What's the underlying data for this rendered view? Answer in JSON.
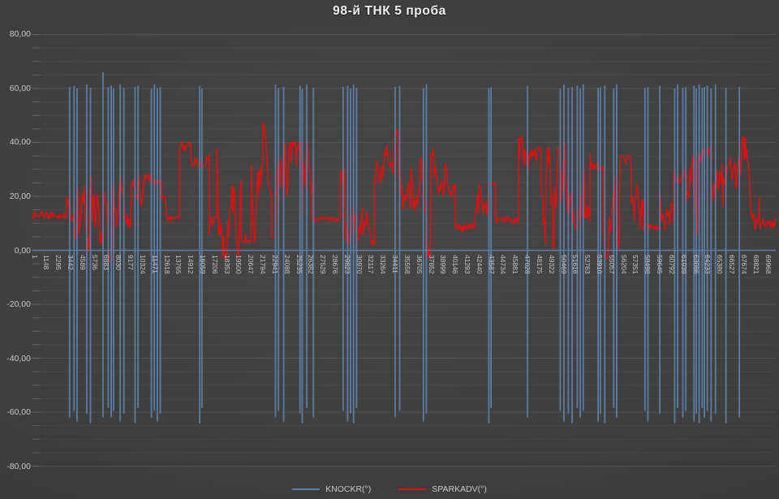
{
  "chart_data": {
    "type": "line",
    "title": "98-й ТНК 5 проба",
    "xlabel": "",
    "ylabel": "",
    "ylim": [
      -80,
      80
    ],
    "ytick_step": 20,
    "minor_grid_step": 5,
    "grid": true,
    "ytick_labels": [
      "80,00",
      "60,00",
      "40,00",
      "20,00",
      "0,00",
      "-20,00",
      "-40,00",
      "-60,00",
      "-80,00"
    ],
    "ytick_values": [
      80,
      60,
      40,
      20,
      0,
      -20,
      -40,
      -60,
      -80
    ],
    "x_first": 1,
    "x_last": 69968,
    "x_step": 1147,
    "xtick_labels": [
      "1",
      "1148",
      "2295",
      "3442",
      "4589",
      "5736",
      "6883",
      "8030",
      "9177",
      "10324",
      "11471",
      "12618",
      "13765",
      "14912",
      "16059",
      "17206",
      "18353",
      "19500",
      "20647",
      "21794",
      "22941",
      "24088",
      "25235",
      "26382",
      "27529",
      "28676",
      "29823",
      "30970",
      "32117",
      "33264",
      "34411",
      "35558",
      "36705",
      "37852",
      "38999",
      "40146",
      "41293",
      "42440",
      "43587",
      "44734",
      "45881",
      "47028",
      "48175",
      "49322",
      "50469",
      "51616",
      "52763",
      "53910",
      "55057",
      "56204",
      "57351",
      "58498",
      "59645",
      "60792",
      "61939",
      "63086",
      "64233",
      "65380",
      "66527",
      "67674",
      "68821",
      "69968"
    ],
    "legend_position": "bottom-center",
    "legend": [
      {
        "name": "KNOCKR(°)",
        "color": "#5d81ad"
      },
      {
        "name": "SPARKADV(°)",
        "color": "#e01010"
      }
    ],
    "series": [
      {
        "name": "KNOCKR(°)",
        "color": "#5d81ad",
        "baseline_value": 0,
        "spikes": [
          [
            0.05,
            60.5,
            -62
          ],
          [
            0.056,
            61,
            -59.5
          ],
          [
            0.06,
            60,
            -63.5
          ],
          [
            0.073,
            61.5,
            -60.5
          ],
          [
            0.078,
            60.2,
            -64
          ],
          [
            0.095,
            66,
            -62
          ],
          [
            0.102,
            60.5,
            -58.5
          ],
          [
            0.106,
            61,
            -62
          ],
          [
            0.109,
            60,
            -59.5
          ],
          [
            0.118,
            61.5,
            -63.5
          ],
          [
            0.123,
            60.2,
            -60.5
          ],
          [
            0.138,
            60.5,
            -64
          ],
          [
            0.142,
            61,
            -58.5
          ],
          [
            0.16,
            60,
            -62
          ],
          [
            0.164,
            61.5,
            -59.5
          ],
          [
            0.168,
            60.2,
            -63.5
          ],
          [
            0.172,
            60.5,
            -60.5
          ],
          [
            0.225,
            61,
            -64
          ],
          [
            0.228,
            60,
            -58.5
          ],
          [
            0.327,
            61.5,
            -62
          ],
          [
            0.331,
            60.2,
            -59.5
          ],
          [
            0.338,
            60.5,
            -63.5
          ],
          [
            0.36,
            61,
            -60.5
          ],
          [
            0.363,
            60,
            -64
          ],
          [
            0.369,
            61.5,
            -58.5
          ],
          [
            0.378,
            60.2,
            -62
          ],
          [
            0.418,
            60.5,
            -59.5
          ],
          [
            0.424,
            61,
            -63.5
          ],
          [
            0.428,
            60,
            -60.5
          ],
          [
            0.432,
            61.5,
            -64
          ],
          [
            0.436,
            60.2,
            -58.5
          ],
          [
            0.488,
            60.5,
            -62
          ],
          [
            0.494,
            61,
            -59.5
          ],
          [
            0.526,
            60,
            -63.5
          ],
          [
            0.53,
            61.5,
            -60.5
          ],
          [
            0.614,
            60.2,
            -64
          ],
          [
            0.617,
            60.5,
            -58.5
          ],
          [
            0.666,
            61,
            -62
          ],
          [
            0.71,
            60,
            -59.5
          ],
          [
            0.715,
            61.5,
            -63.5
          ],
          [
            0.721,
            60.2,
            -60.5
          ],
          [
            0.726,
            60.5,
            -64
          ],
          [
            0.733,
            61,
            -58.5
          ],
          [
            0.737,
            60,
            -62
          ],
          [
            0.741,
            61.5,
            -59.5
          ],
          [
            0.761,
            60.2,
            -63.5
          ],
          [
            0.764,
            60.5,
            -60.5
          ],
          [
            0.77,
            61,
            -64
          ],
          [
            0.782,
            60,
            -58.5
          ],
          [
            0.786,
            61.5,
            -62
          ],
          [
            0.824,
            60.2,
            -59.5
          ],
          [
            0.828,
            60.5,
            -63.5
          ],
          [
            0.844,
            61,
            -60.5
          ],
          [
            0.864,
            60,
            -64
          ],
          [
            0.868,
            61.5,
            -58.5
          ],
          [
            0.875,
            60.2,
            -62
          ],
          [
            0.879,
            60.5,
            -59.5
          ],
          [
            0.89,
            61,
            -63.5
          ],
          [
            0.893,
            60,
            -60.5
          ],
          [
            0.897,
            61.5,
            -64
          ],
          [
            0.901,
            60.2,
            -58.5
          ],
          [
            0.904,
            60.5,
            -62
          ],
          [
            0.908,
            61,
            -59.5
          ],
          [
            0.913,
            60,
            -63.5
          ],
          [
            0.919,
            61.5,
            -60.5
          ],
          [
            0.933,
            60.2,
            -64
          ],
          [
            0.951,
            60.5,
            -62
          ]
        ]
      },
      {
        "name": "SPARKADV(°)",
        "color": "#e01010",
        "envelope_segments": [
          [
            0.0,
            0.046,
            "flat",
            13,
            1.2
          ],
          [
            0.046,
            0.065,
            "osc",
            4,
            28
          ],
          [
            0.065,
            0.12,
            "osc",
            -4,
            27
          ],
          [
            0.12,
            0.158,
            "osc",
            8,
            28
          ],
          [
            0.158,
            0.174,
            "osc",
            15,
            26
          ],
          [
            0.174,
            0.18,
            "osc",
            3,
            20
          ],
          [
            0.18,
            0.198,
            "flat",
            12,
            1.0
          ],
          [
            0.198,
            0.238,
            "osc",
            31,
            40
          ],
          [
            0.238,
            0.248,
            "osc",
            2,
            12
          ],
          [
            0.248,
            0.281,
            "osc",
            -3,
            38
          ],
          [
            0.281,
            0.31,
            "osc",
            3,
            43
          ],
          [
            0.31,
            0.322,
            "osc",
            20,
            47
          ],
          [
            0.322,
            0.332,
            "osc",
            5,
            44
          ],
          [
            0.332,
            0.362,
            "osc",
            -4,
            40
          ],
          [
            0.362,
            0.376,
            "osc",
            8,
            40
          ],
          [
            0.376,
            0.414,
            "flat",
            11.5,
            0.8
          ],
          [
            0.414,
            0.444,
            "osc",
            3,
            32
          ],
          [
            0.444,
            0.46,
            "osc",
            2,
            20
          ],
          [
            0.46,
            0.496,
            "osc",
            25,
            45
          ],
          [
            0.496,
            0.523,
            "osc",
            15,
            40
          ],
          [
            0.523,
            0.536,
            "osc",
            -3,
            37
          ],
          [
            0.536,
            0.569,
            "osc",
            20,
            38
          ],
          [
            0.569,
            0.595,
            "flat",
            8.5,
            1.6
          ],
          [
            0.595,
            0.623,
            "osc",
            7,
            25
          ],
          [
            0.623,
            0.654,
            "flat",
            11,
            1.4
          ],
          [
            0.654,
            0.667,
            "osc",
            10,
            42
          ],
          [
            0.667,
            0.684,
            "osc",
            25,
            38
          ],
          [
            0.684,
            0.714,
            "osc",
            -4,
            38
          ],
          [
            0.714,
            0.743,
            "osc",
            8,
            40
          ],
          [
            0.743,
            0.75,
            "osc",
            2,
            20
          ],
          [
            0.75,
            0.768,
            "osc",
            30,
            39
          ],
          [
            0.768,
            0.79,
            "osc",
            -3,
            38
          ],
          [
            0.79,
            0.806,
            "osc",
            22,
            35
          ],
          [
            0.806,
            0.822,
            "osc",
            4,
            30
          ],
          [
            0.822,
            0.844,
            "flat",
            9,
            1.5
          ],
          [
            0.844,
            0.863,
            "osc",
            5,
            30
          ],
          [
            0.863,
            0.88,
            "osc",
            25,
            36
          ],
          [
            0.88,
            0.895,
            "osc",
            -3,
            35
          ],
          [
            0.895,
            0.913,
            "osc",
            28,
            42
          ],
          [
            0.913,
            0.929,
            "osc",
            6,
            35
          ],
          [
            0.929,
            0.946,
            "osc",
            24,
            36
          ],
          [
            0.946,
            0.961,
            "osc",
            5,
            42
          ],
          [
            0.961,
            0.978,
            "osc",
            8,
            40
          ],
          [
            0.978,
            1.0,
            "flat",
            10,
            2.2
          ]
        ]
      }
    ],
    "colors": {
      "background": "#3e3e3e",
      "grid_minor": "rgba(255,255,255,0.05)",
      "grid_major": "rgba(255,255,255,0.09)",
      "zero_axis": "rgba(210,215,225,0.35)",
      "tick_text": "#c6c6c6",
      "title_text": "#f0f0f0"
    }
  }
}
